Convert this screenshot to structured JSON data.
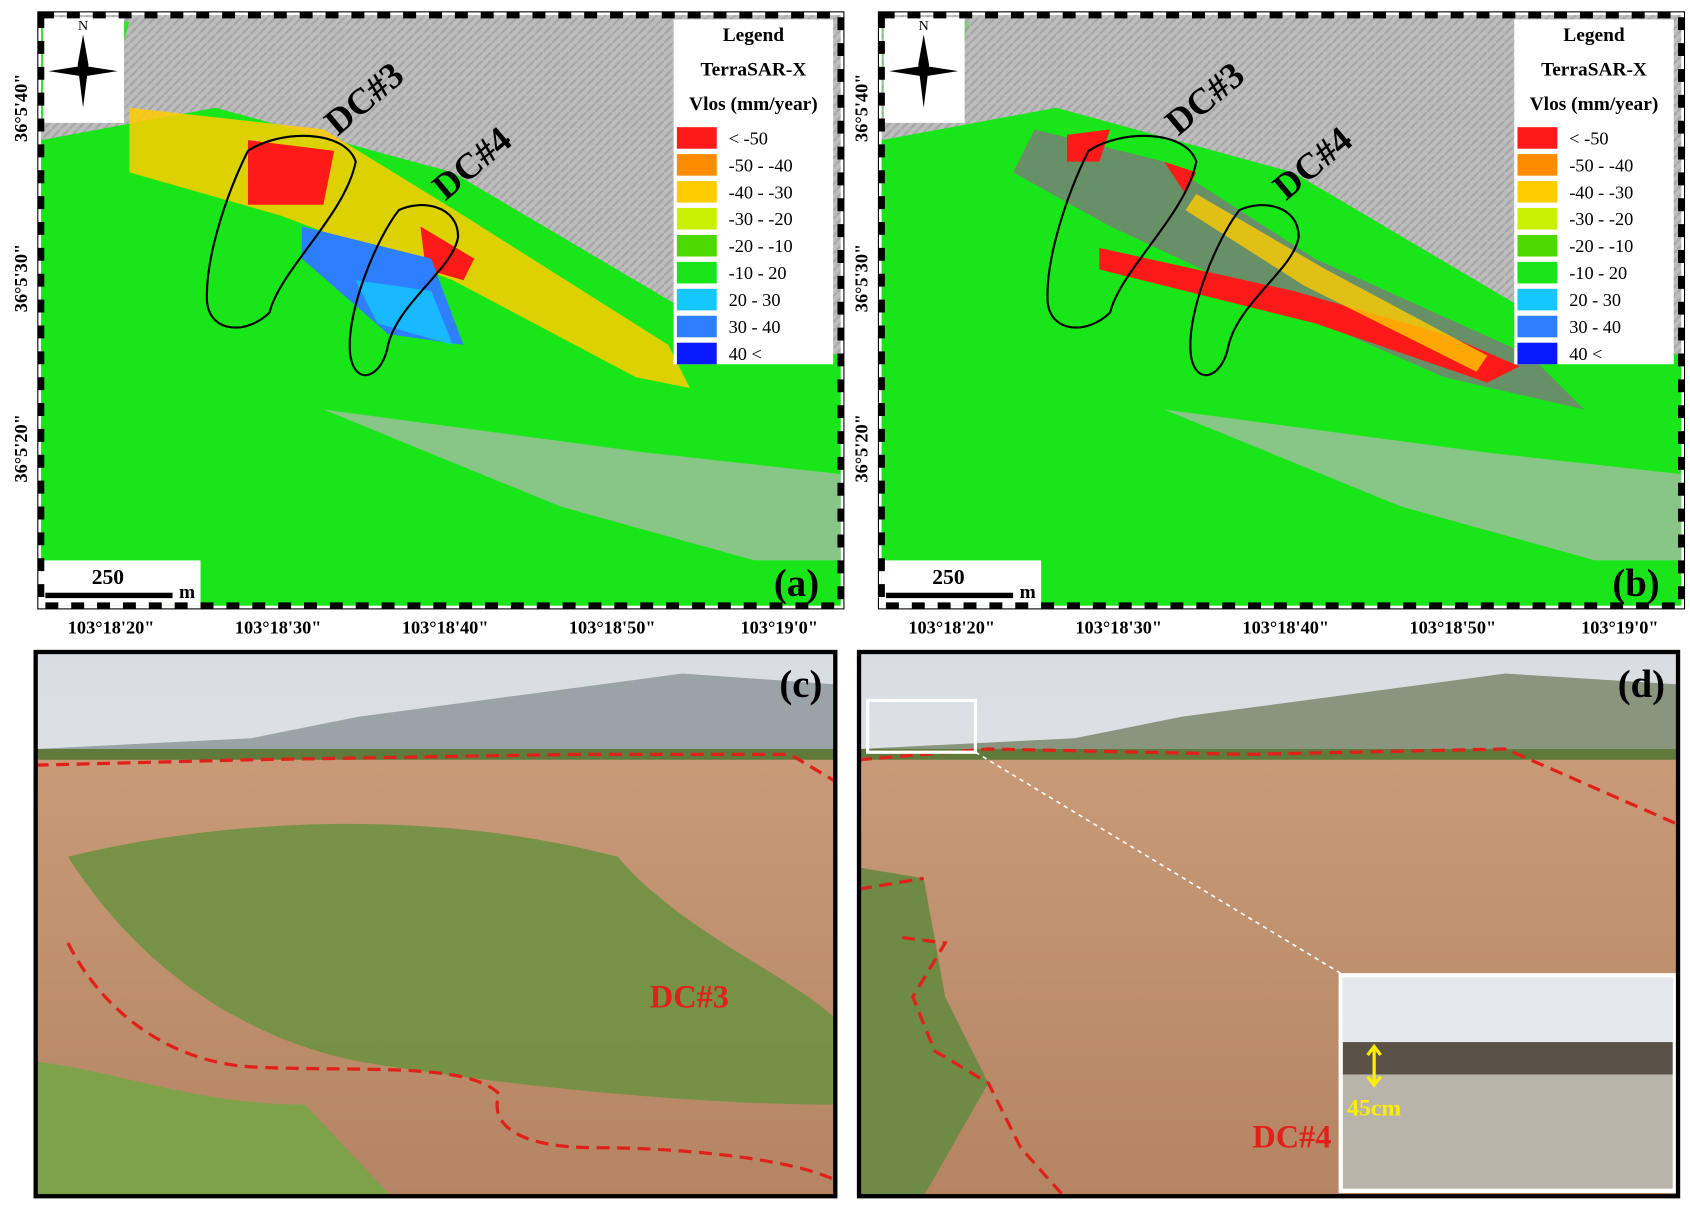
{
  "legend": {
    "title": "Legend",
    "sensor": "TerraSAR-X",
    "unit": "Vlos (mm/year)",
    "classes": [
      {
        "label": "< -50",
        "color": "#ff1a1a"
      },
      {
        "label": "-50 - -40",
        "color": "#ff8c00"
      },
      {
        "label": "-40 - -30",
        "color": "#ffcc00"
      },
      {
        "label": "-30 - -20",
        "color": "#c8f000"
      },
      {
        "label": "-20 - -10",
        "color": "#4cd900"
      },
      {
        "label": "-10 - 20",
        "color": "#19e619"
      },
      {
        "label": "20 - 30",
        "color": "#14c8ff"
      },
      {
        "label": "30 - 40",
        "color": "#2e7fff"
      },
      {
        "label": "40 <",
        "color": "#0a1aff"
      }
    ]
  },
  "north": "N",
  "latitudes": [
    "36°5'40\"",
    "36°5'30\"",
    "36°5'20\""
  ],
  "longitudes": [
    "103°18'20\"",
    "103°18'30\"",
    "103°18'40\"",
    "103°18'50\"",
    "103°19'0\""
  ],
  "maps": [
    {
      "label": "(a)",
      "scale": "250",
      "scale_unit": "m",
      "sites": [
        "DC#3",
        "DC#4"
      ]
    },
    {
      "label": "(b)",
      "scale": "250",
      "scale_unit": "m",
      "sites": [
        "DC#3",
        "DC#4"
      ]
    }
  ],
  "photos": [
    {
      "label": "(c)",
      "site": "DC#3"
    },
    {
      "label": "(d)",
      "site": "DC#4",
      "inset_text": "45cm"
    }
  ]
}
